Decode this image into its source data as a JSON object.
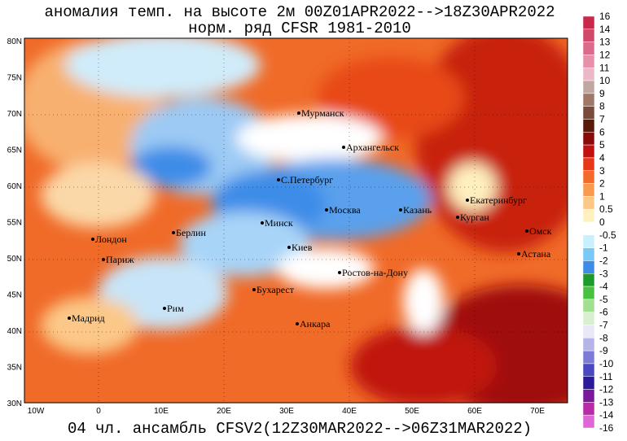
{
  "header": {
    "title": "аномалия темп. на высоте 2м 00Z01APR2022-->18Z30APR2022",
    "subtitle": "норм. ряд CFSR 1981-2010"
  },
  "footer": "04 чл. ансамбль CFSV2(12Z30MAR2022-->06Z31MAR2022)",
  "map": {
    "lat_labels": [
      "80N",
      "75N",
      "70N",
      "65N",
      "60N",
      "55N",
      "50N",
      "45N",
      "40N",
      "35N",
      "30N"
    ],
    "lon_labels": [
      "10W",
      "0",
      "10E",
      "20E",
      "30E",
      "40E",
      "50E",
      "60E",
      "70E"
    ],
    "cities": [
      "Мурманск",
      "Архангельск",
      "С.Петербург",
      "Москва",
      "Казань",
      "Екатеринбург",
      "Курган",
      "Омск",
      "Астана",
      "Минск",
      "Берлин",
      "Лондон",
      "Париж",
      "Киев",
      "Ростов-на-Дону",
      "Бухарест",
      "Рим",
      "Мадрид",
      "Анкара"
    ]
  },
  "colorbar": {
    "labels": [
      "16",
      "14",
      "13",
      "12",
      "11",
      "10",
      "9",
      "8",
      "7",
      "6",
      "5",
      "4",
      "3",
      "2",
      "1",
      "0.5",
      "0",
      "-0.5",
      "-1",
      "-2",
      "-3",
      "-4",
      "-5",
      "-6",
      "-7",
      "-8",
      "-9",
      "-10",
      "-11",
      "-12",
      "-13",
      "-14",
      "-16"
    ],
    "colors": [
      "#c8284a",
      "#d2486a",
      "#dc6a8a",
      "#e690aa",
      "#ecb8c8",
      "#c0a8a0",
      "#a07868",
      "#7a4a3a",
      "#5a1a0a",
      "#8a0a0a",
      "#c01010",
      "#e63818",
      "#f46a28",
      "#f89a50",
      "#fcc888",
      "#fff0c0",
      "#ffffff",
      "#c8f0ff",
      "#78c8f8",
      "#3c8ce8",
      "#1c9a2c",
      "#48c040",
      "#a0e090",
      "#d8f0d0",
      "#e8e8f8",
      "#b4b4e8",
      "#7c7cd8",
      "#4a4ac0",
      "#2a1a9a",
      "#7a1a9a",
      "#b82aa8",
      "#e066d8"
    ]
  }
}
